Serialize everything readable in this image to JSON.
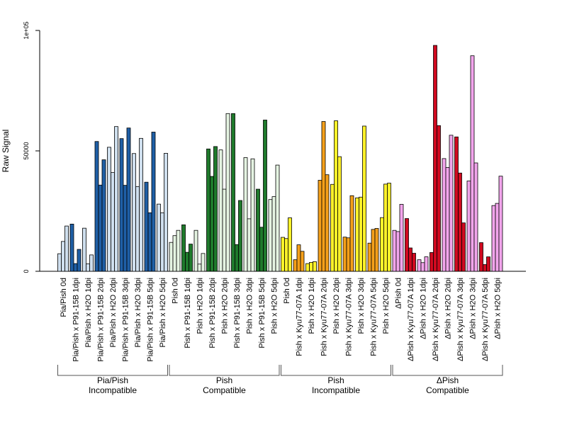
{
  "chart_data": {
    "type": "bar",
    "ylabel": "Raw Signal",
    "ylim": [
      0,
      100000
    ],
    "yticks": [
      0,
      50000,
      100000
    ],
    "ytick_labels": [
      "0",
      "50000",
      "1e+05"
    ],
    "bar_border": "#000000",
    "categories": [
      "Pia/Pish 0d",
      "Pia/Pish x P91-15B 1dpi",
      "Pia/Pish x H2O 1dpi",
      "Pia/Pish x P91-15B 2dpi",
      "Pia/Pish x H2O 2dpi",
      "Pia/Pish x P91-15B 3dpi",
      "Pia/Pish x H2O 3dpi",
      "Pia/Pish x P91-15B 5dpi",
      "Pia/Pish x H2O 5dpi",
      "Pish 0d",
      "Pish x P91-15B 1dpi",
      "Pish x H2O 1dpi",
      "Pish x P91-15B 2dpi",
      "Pish x H2O 2dpi",
      "Pish x P91-15B 3dpi",
      "Pish x H2O 3dpi",
      "Pish x P91-15B 5dpi",
      "Pish x H2O 5dpi",
      "Pish 0d",
      "Pish x Kyu77-07A 1dpi",
      "Pish x H2O 1dpi",
      "Pish x Kyu77-07A 2dpi",
      "Pish x H2O 2dpi",
      "Pish x Kyu77-07A 3dpi",
      "Pish x H2O 3dpi",
      "Pish x Kyu77-07A 5dpi",
      "Pish x H2O 5dpi",
      "ΔPish 0d",
      "ΔPish x Kyu77-07A 1dpi",
      "ΔPish x H2O 1dpi",
      "ΔPish x Kyu77-07A 2dpi",
      "ΔPish x H2O 2dpi",
      "ΔPish x Kyu77-07A 3dpi",
      "ΔPish x H2O 3dpi",
      "ΔPish x Kyu77-07A 5dpi",
      "ΔPish x H2O 5dpi"
    ],
    "colors": [
      "#cfdfee",
      "#1f5fa6",
      "#cfdfee",
      "#1f5fa6",
      "#cfdfee",
      "#1f5fa6",
      "#cfdfee",
      "#1f5fa6",
      "#cfdfee",
      "#e5f4e2",
      "#1f7a2c",
      "#e5f4e2",
      "#1f7a2c",
      "#e5f4e2",
      "#1f7a2c",
      "#e5f4e2",
      "#1f7a2c",
      "#e5f4e2",
      "#fff22a",
      "#f5a01a",
      "#fff22a",
      "#f5a01a",
      "#fff22a",
      "#f5a01a",
      "#fff22a",
      "#f5a01a",
      "#fff22a",
      "#f2a5ec",
      "#d00a20",
      "#f2a5ec",
      "#d00a20",
      "#f2a5ec",
      "#d00a20",
      "#f2a5ec",
      "#d00a20",
      "#f2a5ec"
    ],
    "values": [
      [
        7300,
        12400,
        18800
      ],
      [
        19600,
        3200,
        9100
      ],
      [
        17900,
        3100,
        6800
      ],
      [
        53900,
        35800,
        46300
      ],
      [
        51500,
        41000,
        60100
      ],
      [
        55100,
        35700,
        59500
      ],
      [
        48900,
        35200,
        55200
      ],
      [
        37000,
        24300,
        57800
      ],
      [
        27900,
        24300,
        49000
      ],
      [
        12000,
        14800,
        17000
      ],
      [
        19300,
        7900,
        11300
      ],
      [
        17000,
        3000,
        7400
      ],
      [
        50800,
        39400,
        51800
      ],
      [
        50400,
        34100,
        65500
      ],
      [
        65500,
        11100,
        29400
      ],
      [
        47200,
        21800,
        46700
      ],
      [
        34100,
        18300,
        62800
      ],
      [
        29800,
        31000,
        44100
      ],
      [
        14100,
        13600,
        22200
      ],
      [
        4800,
        11000,
        8300
      ],
      [
        3200,
        3700,
        4000
      ],
      [
        37800,
        62200,
        40100
      ],
      [
        36100,
        62500,
        47600
      ],
      [
        14200,
        13900,
        31400
      ],
      [
        30500,
        30800,
        60300
      ],
      [
        11700,
        17400,
        17800
      ],
      [
        22300,
        36200,
        36600
      ],
      [
        17000,
        16500,
        27800
      ],
      [
        21900,
        9700,
        7500
      ],
      [
        4800,
        3600,
        6000
      ],
      [
        7800,
        93800,
        60500
      ],
      [
        46800,
        43100,
        56500
      ],
      [
        55800,
        40800,
        20100
      ],
      [
        37500,
        89500,
        45000
      ],
      [
        11900,
        2800,
        6000
      ],
      [
        27300,
        28200,
        39500
      ]
    ],
    "groups": [
      {
        "line1": "Pia/Pish",
        "line2": "Incompatible",
        "start": 0,
        "end": 8
      },
      {
        "line1": "Pish",
        "line2": "Compatible",
        "start": 9,
        "end": 17
      },
      {
        "line1": "Pish",
        "line2": "Incompatible",
        "start": 18,
        "end": 26
      },
      {
        "line1": "ΔPish",
        "line2": "Compatible",
        "start": 27,
        "end": 35
      }
    ]
  }
}
